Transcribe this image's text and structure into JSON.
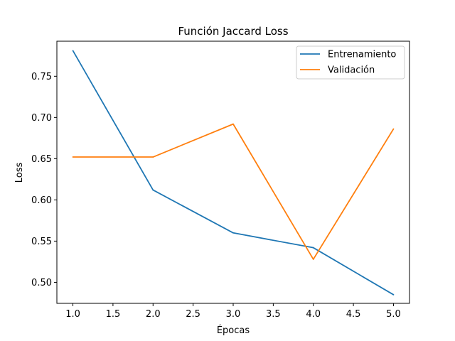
{
  "chart_data": {
    "type": "line",
    "title": "Función Jaccard Loss",
    "xlabel": "Épocas",
    "ylabel": "Loss",
    "xlim": [
      0.8,
      5.2
    ],
    "ylim": [
      0.4745,
      0.7925
    ],
    "xticks": [
      1.0,
      1.5,
      2.0,
      2.5,
      3.0,
      3.5,
      4.0,
      4.5,
      5.0
    ],
    "xtick_labels": [
      "1.0",
      "1.5",
      "2.0",
      "2.5",
      "3.0",
      "3.5",
      "4.0",
      "4.5",
      "5.0"
    ],
    "yticks": [
      0.5,
      0.55,
      0.6,
      0.65,
      0.7,
      0.75
    ],
    "ytick_labels": [
      "0.50",
      "0.55",
      "0.60",
      "0.65",
      "0.70",
      "0.75"
    ],
    "grid": false,
    "legend_position": "top-right",
    "x": [
      1,
      2,
      3,
      4,
      5
    ],
    "series": [
      {
        "name": "Entrenamiento",
        "color": "#1f77b4",
        "values": [
          0.781,
          0.612,
          0.56,
          0.542,
          0.485
        ]
      },
      {
        "name": "Validación",
        "color": "#ff7f0e",
        "values": [
          0.652,
          0.652,
          0.692,
          0.528,
          0.686
        ]
      }
    ]
  }
}
